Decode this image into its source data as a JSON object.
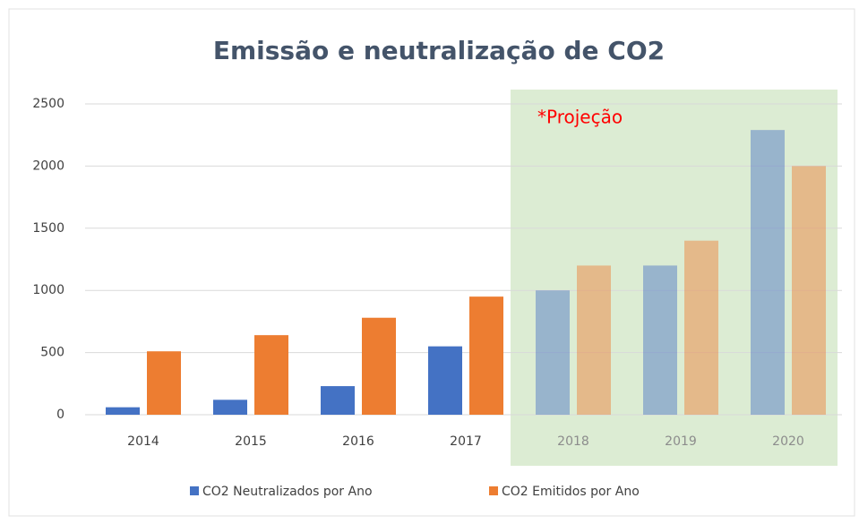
{
  "chart_data": {
    "type": "bar",
    "title": "Emissão e neutralização de CO2",
    "categories": [
      "2014",
      "2015",
      "2016",
      "2017",
      "2018",
      "2019",
      "2020"
    ],
    "series": [
      {
        "name": "CO2 Neutralizados por Ano",
        "color": "#4472c4",
        "values": [
          60,
          120,
          230,
          550,
          1000,
          1200,
          2290
        ]
      },
      {
        "name": "CO2 Emitidos por Ano",
        "color": "#ed7d31",
        "values": [
          510,
          640,
          780,
          950,
          1200,
          1400,
          2000
        ]
      }
    ],
    "ylim": [
      0,
      2500
    ],
    "yticks": [
      0,
      500,
      1000,
      1500,
      2000,
      2500
    ],
    "grid": true,
    "legend": "bottom",
    "projection": {
      "label": "*Projeção",
      "from": "2018",
      "to": "2020",
      "color": "#dcecd3"
    }
  }
}
